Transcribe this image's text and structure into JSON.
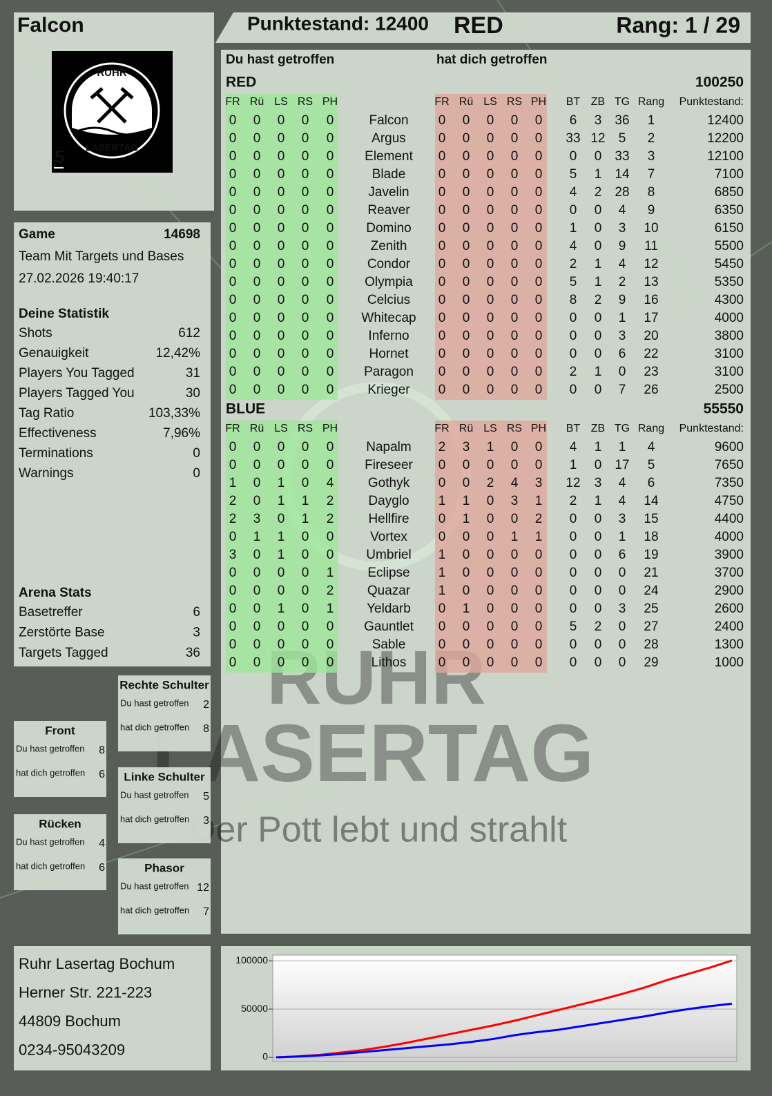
{
  "header": {
    "player": "Falcon",
    "score": "Punktestand: 12400",
    "team": "RED",
    "rank": "Rang: 1 / 29"
  },
  "logo": {
    "top": "RUHR",
    "bottom": "LASERTAG",
    "number": "5"
  },
  "game": {
    "label": "Game",
    "id": 14698,
    "mode": "Team Mit Targets und Bases",
    "datetime": "27.02.2026 19:40:17"
  },
  "stats": {
    "title": "Deine Statistik",
    "rows": [
      [
        "Shots",
        612
      ],
      [
        "Genauigkeit",
        "12,42%"
      ],
      [
        "Players You Tagged",
        31
      ],
      [
        "Players Tagged You",
        30
      ],
      [
        "Tag Ratio",
        "103,33%"
      ],
      [
        "Effectiveness",
        "7,96%"
      ],
      [
        "Terminations",
        0
      ],
      [
        "Warnings",
        0
      ]
    ]
  },
  "arena": {
    "title": "Arena Stats",
    "rows": [
      [
        "Basetreffer",
        6
      ],
      [
        "Zerstörte Base",
        3
      ],
      [
        "Targets Tagged",
        36
      ]
    ]
  },
  "zones": [
    {
      "title": "Rechte Schulter",
      "rows": [
        [
          "Du hast getroffen",
          2
        ],
        [
          "hat dich getroffen",
          8
        ]
      ]
    },
    {
      "title": "Front",
      "rows": [
        [
          "Du hast getroffen",
          8
        ],
        [
          "hat dich getroffen",
          6
        ]
      ]
    },
    {
      "title": "Linke Schulter",
      "rows": [
        [
          "Du hast getroffen",
          5
        ],
        [
          "hat dich getroffen",
          3
        ]
      ]
    },
    {
      "title": "Rücken",
      "rows": [
        [
          "Du hast getroffen",
          4
        ],
        [
          "hat dich getroffen",
          6
        ]
      ]
    },
    {
      "title": "Phasor",
      "rows": [
        [
          "Du hast getroffen",
          12
        ],
        [
          "hat dich getroffen",
          7
        ]
      ]
    }
  ],
  "address": [
    "Ruhr Lasertag Bochum",
    "Herner Str. 221-223",
    "44809 Bochum",
    "0234-95043209"
  ],
  "watermark": {
    "line1": "RUHR",
    "line2": "LASERTAG",
    "slogan": "Der Pott lebt und strahlt"
  },
  "table": {
    "given_heading": "Du hast getroffen",
    "received_heading": "hat dich getroffen",
    "columns": [
      "FR",
      "Rü",
      "LS",
      "RS",
      "PH",
      "FR",
      "Rü",
      "LS",
      "RS",
      "PH",
      "BT",
      "ZB",
      "TG",
      "Rang",
      "Punktestand:"
    ],
    "teams": [
      {
        "name": "RED",
        "color": "#e00000",
        "total": 100250,
        "rows": [
          [
            "Falcon",
            0,
            0,
            0,
            0,
            0,
            0,
            0,
            0,
            0,
            0,
            6,
            3,
            36,
            1,
            12400
          ],
          [
            "Argus",
            0,
            0,
            0,
            0,
            0,
            0,
            0,
            0,
            0,
            0,
            33,
            12,
            5,
            2,
            12200
          ],
          [
            "Element",
            0,
            0,
            0,
            0,
            0,
            0,
            0,
            0,
            0,
            0,
            0,
            0,
            33,
            3,
            12100
          ],
          [
            "Blade",
            0,
            0,
            0,
            0,
            0,
            0,
            0,
            0,
            0,
            0,
            5,
            1,
            14,
            7,
            7100
          ],
          [
            "Javelin",
            0,
            0,
            0,
            0,
            0,
            0,
            0,
            0,
            0,
            0,
            4,
            2,
            28,
            8,
            6850
          ],
          [
            "Reaver",
            0,
            0,
            0,
            0,
            0,
            0,
            0,
            0,
            0,
            0,
            0,
            0,
            4,
            9,
            6350
          ],
          [
            "Domino",
            0,
            0,
            0,
            0,
            0,
            0,
            0,
            0,
            0,
            0,
            1,
            0,
            3,
            10,
            6150
          ],
          [
            "Zenith",
            0,
            0,
            0,
            0,
            0,
            0,
            0,
            0,
            0,
            0,
            4,
            0,
            9,
            11,
            5500
          ],
          [
            "Condor",
            0,
            0,
            0,
            0,
            0,
            0,
            0,
            0,
            0,
            0,
            2,
            1,
            4,
            12,
            5450
          ],
          [
            "Olympia",
            0,
            0,
            0,
            0,
            0,
            0,
            0,
            0,
            0,
            0,
            5,
            1,
            2,
            13,
            5350
          ],
          [
            "Celcius",
            0,
            0,
            0,
            0,
            0,
            0,
            0,
            0,
            0,
            0,
            8,
            2,
            9,
            16,
            4300
          ],
          [
            "Whitecap",
            0,
            0,
            0,
            0,
            0,
            0,
            0,
            0,
            0,
            0,
            0,
            0,
            1,
            17,
            4000
          ],
          [
            "Inferno",
            0,
            0,
            0,
            0,
            0,
            0,
            0,
            0,
            0,
            0,
            0,
            0,
            3,
            20,
            3800
          ],
          [
            "Hornet",
            0,
            0,
            0,
            0,
            0,
            0,
            0,
            0,
            0,
            0,
            0,
            0,
            6,
            22,
            3100
          ],
          [
            "Paragon",
            0,
            0,
            0,
            0,
            0,
            0,
            0,
            0,
            0,
            0,
            2,
            1,
            0,
            23,
            3100
          ],
          [
            "Krieger",
            0,
            0,
            0,
            0,
            0,
            0,
            0,
            0,
            0,
            0,
            0,
            0,
            7,
            26,
            2500
          ]
        ]
      },
      {
        "name": "BLUE",
        "color": "#0000cc",
        "total": 55550,
        "rows": [
          [
            "Napalm",
            0,
            0,
            0,
            0,
            0,
            2,
            3,
            1,
            0,
            0,
            4,
            1,
            1,
            4,
            9600
          ],
          [
            "Fireseer",
            0,
            0,
            0,
            0,
            0,
            0,
            0,
            0,
            0,
            0,
            1,
            0,
            17,
            5,
            7650
          ],
          [
            "Gothyk",
            1,
            0,
            1,
            0,
            4,
            0,
            0,
            2,
            4,
            3,
            12,
            3,
            4,
            6,
            7350
          ],
          [
            "Dayglo",
            2,
            0,
            1,
            1,
            2,
            1,
            1,
            0,
            3,
            1,
            2,
            1,
            4,
            14,
            4750
          ],
          [
            "Hellfire",
            2,
            3,
            0,
            1,
            2,
            0,
            1,
            0,
            0,
            2,
            0,
            0,
            3,
            15,
            4400
          ],
          [
            "Vortex",
            0,
            1,
            1,
            0,
            0,
            0,
            0,
            0,
            1,
            1,
            0,
            0,
            1,
            18,
            4000
          ],
          [
            "Umbriel",
            3,
            0,
            1,
            0,
            0,
            1,
            0,
            0,
            0,
            0,
            0,
            0,
            6,
            19,
            3900
          ],
          [
            "Eclipse",
            0,
            0,
            0,
            0,
            1,
            1,
            0,
            0,
            0,
            0,
            0,
            0,
            0,
            21,
            3700
          ],
          [
            "Quazar",
            0,
            0,
            0,
            0,
            2,
            1,
            0,
            0,
            0,
            0,
            0,
            0,
            0,
            24,
            2900
          ],
          [
            "Yeldarb",
            0,
            0,
            1,
            0,
            1,
            0,
            1,
            0,
            0,
            0,
            0,
            0,
            3,
            25,
            2600
          ],
          [
            "Gauntlet",
            0,
            0,
            0,
            0,
            0,
            0,
            0,
            0,
            0,
            0,
            5,
            2,
            0,
            27,
            2400
          ],
          [
            "Sable",
            0,
            0,
            0,
            0,
            0,
            0,
            0,
            0,
            0,
            0,
            0,
            0,
            0,
            28,
            1300
          ],
          [
            "Lithos",
            0,
            0,
            0,
            0,
            0,
            0,
            0,
            0,
            0,
            0,
            0,
            0,
            0,
            29,
            1000
          ]
        ]
      }
    ]
  },
  "chart_data": {
    "type": "line",
    "ylim": [
      0,
      103000
    ],
    "yticks": [
      0,
      50000,
      100000
    ],
    "grid": true,
    "series": [
      {
        "name": "RED",
        "color": "#ff0000",
        "values": [
          0,
          1000,
          2500,
          5000,
          7500,
          11000,
          15000,
          19500,
          24000,
          28500,
          33000,
          38000,
          43500,
          49000,
          54500,
          60000,
          66000,
          72500,
          80000,
          86500,
          93000,
          100250
        ]
      },
      {
        "name": "BLUE",
        "color": "#0000ff",
        "values": [
          0,
          800,
          2000,
          3500,
          5500,
          7500,
          9500,
          11500,
          13500,
          16000,
          19000,
          23000,
          26000,
          28500,
          32000,
          35500,
          39000,
          42500,
          46500,
          50000,
          53000,
          55550
        ]
      }
    ]
  }
}
